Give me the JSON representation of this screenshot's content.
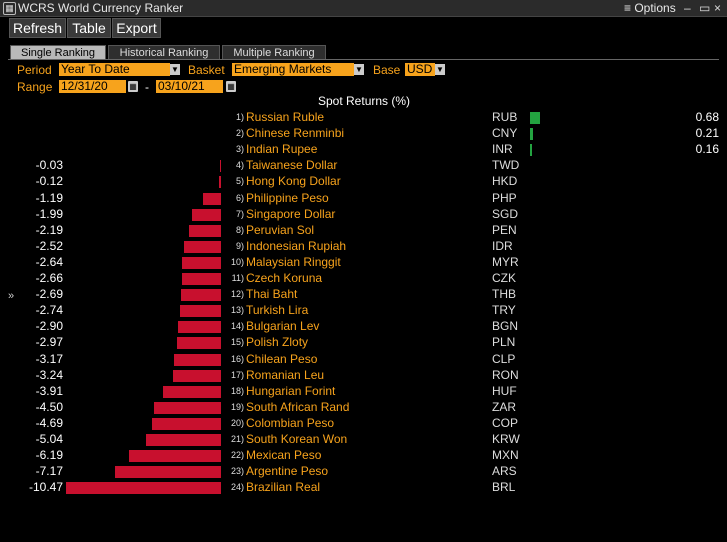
{
  "window": {
    "title": "WCRS World Currency Ranker",
    "options_label": "Options"
  },
  "toolbar": {
    "refresh": "Refresh",
    "table": "Table",
    "export": "Export"
  },
  "tabs": [
    {
      "label": "Single Ranking",
      "active": true
    },
    {
      "label": "Historical Ranking",
      "active": false
    },
    {
      "label": "Multiple Ranking",
      "active": false
    }
  ],
  "controls": {
    "period_label": "Period",
    "period_value": "Year To Date",
    "basket_label": "Basket",
    "basket_value": "Emerging Markets",
    "base_label": "Base",
    "base_value": "USD",
    "range_label": "Range",
    "range_start": "12/31/20",
    "range_sep": "-",
    "range_end": "03/10/21"
  },
  "chart_data": {
    "type": "bar",
    "title": "Spot Returns (%)",
    "colors": {
      "positive": "#23a340",
      "negative": "#c8102e"
    },
    "rows": [
      {
        "rank": "1)",
        "name": "Russian Ruble",
        "code": "RUB",
        "value": 0.68,
        "label": "0.68"
      },
      {
        "rank": "2)",
        "name": "Chinese Renminbi",
        "code": "CNY",
        "value": 0.21,
        "label": "0.21"
      },
      {
        "rank": "3)",
        "name": "Indian Rupee",
        "code": "INR",
        "value": 0.16,
        "label": "0.16"
      },
      {
        "rank": "4)",
        "name": "Taiwanese Dollar",
        "code": "TWD",
        "value": -0.03,
        "label": "-0.03"
      },
      {
        "rank": "5)",
        "name": "Hong Kong Dollar",
        "code": "HKD",
        "value": -0.12,
        "label": "-0.12"
      },
      {
        "rank": "6)",
        "name": "Philippine Peso",
        "code": "PHP",
        "value": -1.19,
        "label": "-1.19"
      },
      {
        "rank": "7)",
        "name": "Singapore Dollar",
        "code": "SGD",
        "value": -1.99,
        "label": "-1.99"
      },
      {
        "rank": "8)",
        "name": "Peruvian Sol",
        "code": "PEN",
        "value": -2.19,
        "label": "-2.19"
      },
      {
        "rank": "9)",
        "name": "Indonesian Rupiah",
        "code": "IDR",
        "value": -2.52,
        "label": "-2.52"
      },
      {
        "rank": "10)",
        "name": "Malaysian Ringgit",
        "code": "MYR",
        "value": -2.64,
        "label": "-2.64"
      },
      {
        "rank": "11)",
        "name": "Czech Koruna",
        "code": "CZK",
        "value": -2.66,
        "label": "-2.66"
      },
      {
        "rank": "12)",
        "name": "Thai Baht",
        "code": "THB",
        "value": -2.69,
        "label": "-2.69"
      },
      {
        "rank": "13)",
        "name": "Turkish Lira",
        "code": "TRY",
        "value": -2.74,
        "label": "-2.74"
      },
      {
        "rank": "14)",
        "name": "Bulgarian Lev",
        "code": "BGN",
        "value": -2.9,
        "label": "-2.90"
      },
      {
        "rank": "15)",
        "name": "Polish Zloty",
        "code": "PLN",
        "value": -2.97,
        "label": "-2.97"
      },
      {
        "rank": "16)",
        "name": "Chilean Peso",
        "code": "CLP",
        "value": -3.17,
        "label": "-3.17"
      },
      {
        "rank": "17)",
        "name": "Romanian Leu",
        "code": "RON",
        "value": -3.24,
        "label": "-3.24"
      },
      {
        "rank": "18)",
        "name": "Hungarian Forint",
        "code": "HUF",
        "value": -3.91,
        "label": "-3.91"
      },
      {
        "rank": "19)",
        "name": "South African Rand",
        "code": "ZAR",
        "value": -4.5,
        "label": "-4.50"
      },
      {
        "rank": "20)",
        "name": "Colombian Peso",
        "code": "COP",
        "value": -4.69,
        "label": "-4.69"
      },
      {
        "rank": "21)",
        "name": "South Korean Won",
        "code": "KRW",
        "value": -5.04,
        "label": "-5.04"
      },
      {
        "rank": "22)",
        "name": "Mexican Peso",
        "code": "MXN",
        "value": -6.19,
        "label": "-6.19"
      },
      {
        "rank": "23)",
        "name": "Argentine Peso",
        "code": "ARS",
        "value": -7.17,
        "label": "-7.17"
      },
      {
        "rank": "24)",
        "name": "Brazilian Real",
        "code": "BRL",
        "value": -10.47,
        "label": "-10.47"
      }
    ]
  },
  "icons": {
    "window": "grid-icon",
    "dropdown": "chevron-down-icon",
    "calendar": "calendar-icon",
    "side": "chevron-right-icon"
  }
}
